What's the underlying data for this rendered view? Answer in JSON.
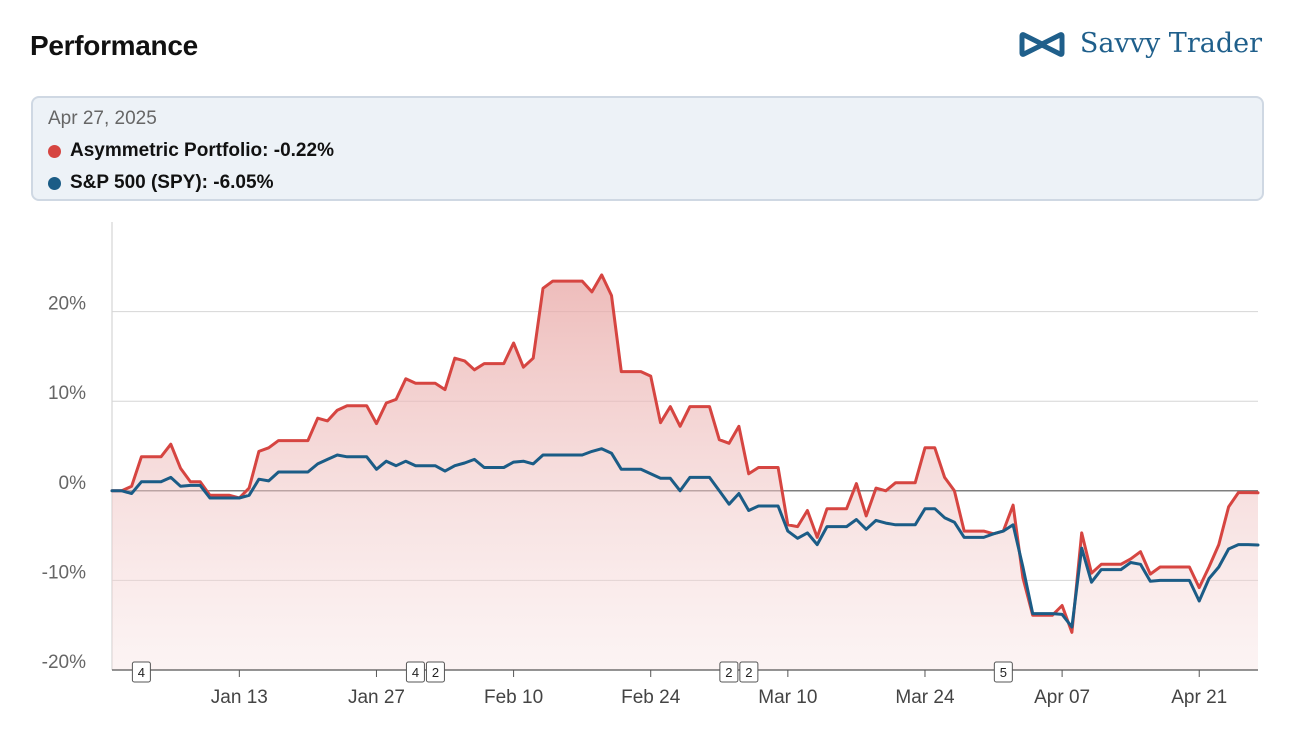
{
  "header": {
    "title": "Performance",
    "brand_name": "Savvy Trader",
    "brand_icon": "infinity-logo-icon"
  },
  "tooltip": {
    "date": "Apr 27, 2025",
    "rows": [
      {
        "label": "Asymmetric Portfolio: -0.22%",
        "color": "#d64541"
      },
      {
        "label": "S&P 500 (SPY): -6.05%",
        "color": "#1b5c86"
      }
    ]
  },
  "chart_data": {
    "type": "area",
    "title": "",
    "xlabel": "",
    "ylabel": "",
    "ylim": [
      -20,
      30
    ],
    "x_range": [
      "Dec 31",
      "Apr 27"
    ],
    "yticks": [
      {
        "value": 20,
        "label": "20%"
      },
      {
        "value": 10,
        "label": "10%"
      },
      {
        "value": 0,
        "label": "0%"
      },
      {
        "value": -10,
        "label": "-10%"
      },
      {
        "value": -20,
        "label": "-20%"
      }
    ],
    "xticks": [
      {
        "date": "Jan 13",
        "label": "Jan 13"
      },
      {
        "date": "Jan 27",
        "label": "Jan 27"
      },
      {
        "date": "Feb 10",
        "label": "Feb 10"
      },
      {
        "date": "Feb 24",
        "label": "Feb 24"
      },
      {
        "date": "Mar 10",
        "label": "Mar 10"
      },
      {
        "date": "Mar 24",
        "label": "Mar 24"
      },
      {
        "date": "Apr 07",
        "label": "Apr 07"
      },
      {
        "date": "Apr 21",
        "label": "Apr 21"
      }
    ],
    "grid": true,
    "series": [
      {
        "name": "Asymmetric Portfolio",
        "color": "#d64541",
        "points": [
          [
            "Dec 31",
            0
          ],
          [
            "Jan 01",
            0
          ],
          [
            "Jan 02",
            0.5
          ],
          [
            "Jan 03",
            3.8
          ],
          [
            "Jan 04",
            3.8
          ],
          [
            "Jan 05",
            3.8
          ],
          [
            "Jan 06",
            5.2
          ],
          [
            "Jan 07",
            2.5
          ],
          [
            "Jan 08",
            1
          ],
          [
            "Jan 09",
            1
          ],
          [
            "Jan 10",
            -0.5
          ],
          [
            "Jan 11",
            -0.5
          ],
          [
            "Jan 12",
            -0.5
          ],
          [
            "Jan 13",
            -0.8
          ],
          [
            "Jan 14",
            0.3
          ],
          [
            "Jan 15",
            4.4
          ],
          [
            "Jan 16",
            4.8
          ],
          [
            "Jan 17",
            5.6
          ],
          [
            "Jan 18",
            5.6
          ],
          [
            "Jan 19",
            5.6
          ],
          [
            "Jan 20",
            5.6
          ],
          [
            "Jan 21",
            8.1
          ],
          [
            "Jan 22",
            7.8
          ],
          [
            "Jan 23",
            9
          ],
          [
            "Jan 24",
            9.5
          ],
          [
            "Jan 25",
            9.5
          ],
          [
            "Jan 26",
            9.5
          ],
          [
            "Jan 27",
            7.5
          ],
          [
            "Jan 28",
            9.8
          ],
          [
            "Jan 29",
            10.2
          ],
          [
            "Jan 30",
            12.5
          ],
          [
            "Jan 31",
            12
          ],
          [
            "Feb 01",
            12
          ],
          [
            "Feb 02",
            12
          ],
          [
            "Feb 03",
            11.3
          ],
          [
            "Feb 04",
            14.8
          ],
          [
            "Feb 05",
            14.5
          ],
          [
            "Feb 06",
            13.5
          ],
          [
            "Feb 07",
            14.2
          ],
          [
            "Feb 08",
            14.2
          ],
          [
            "Feb 09",
            14.2
          ],
          [
            "Feb 10",
            16.5
          ],
          [
            "Feb 11",
            13.8
          ],
          [
            "Feb 12",
            14.8
          ],
          [
            "Feb 13",
            22.6
          ],
          [
            "Feb 14",
            23.4
          ],
          [
            "Feb 15",
            23.4
          ],
          [
            "Feb 16",
            23.4
          ],
          [
            "Feb 17",
            23.4
          ],
          [
            "Feb 18",
            22.2
          ],
          [
            "Feb 19",
            24.1
          ],
          [
            "Feb 20",
            21.8
          ],
          [
            "Feb 21",
            13.3
          ],
          [
            "Feb 22",
            13.3
          ],
          [
            "Feb 23",
            13.3
          ],
          [
            "Feb 24",
            12.8
          ],
          [
            "Feb 25",
            7.6
          ],
          [
            "Feb 26",
            9.4
          ],
          [
            "Feb 27",
            7.2
          ],
          [
            "Feb 28",
            9.4
          ],
          [
            "Mar 01",
            9.4
          ],
          [
            "Mar 02",
            9.4
          ],
          [
            "Mar 03",
            5.7
          ],
          [
            "Mar 04",
            5.3
          ],
          [
            "Mar 05",
            7.2
          ],
          [
            "Mar 06",
            1.9
          ],
          [
            "Mar 07",
            2.6
          ],
          [
            "Mar 08",
            2.6
          ],
          [
            "Mar 09",
            2.6
          ],
          [
            "Mar 10",
            -3.8
          ],
          [
            "Mar 11",
            -4
          ],
          [
            "Mar 12",
            -2.2
          ],
          [
            "Mar 13",
            -5.2
          ],
          [
            "Mar 14",
            -2
          ],
          [
            "Mar 15",
            -2
          ],
          [
            "Mar 16",
            -2
          ],
          [
            "Mar 17",
            0.8
          ],
          [
            "Mar 18",
            -2.8
          ],
          [
            "Mar 19",
            0.3
          ],
          [
            "Mar 20",
            0
          ],
          [
            "Mar 21",
            0.9
          ],
          [
            "Mar 22",
            0.9
          ],
          [
            "Mar 23",
            0.9
          ],
          [
            "Mar 24",
            4.8
          ],
          [
            "Mar 25",
            4.8
          ],
          [
            "Mar 26",
            1.5
          ],
          [
            "Mar 27",
            0
          ],
          [
            "Mar 28",
            -4.5
          ],
          [
            "Mar 29",
            -4.5
          ],
          [
            "Mar 30",
            -4.5
          ],
          [
            "Mar 31",
            -4.8
          ],
          [
            "Apr 01",
            -4.5
          ],
          [
            "Apr 02",
            -1.6
          ],
          [
            "Apr 03",
            -9.7
          ],
          [
            "Apr 04",
            -13.9
          ],
          [
            "Apr 05",
            -13.9
          ],
          [
            "Apr 06",
            -13.9
          ],
          [
            "Apr 07",
            -12.8
          ],
          [
            "Apr 08",
            -15.8
          ],
          [
            "Apr 09",
            -4.7
          ],
          [
            "Apr 10",
            -9.2
          ],
          [
            "Apr 11",
            -8.2
          ],
          [
            "Apr 12",
            -8.2
          ],
          [
            "Apr 13",
            -8.2
          ],
          [
            "Apr 14",
            -7.6
          ],
          [
            "Apr 15",
            -6.8
          ],
          [
            "Apr 16",
            -9.3
          ],
          [
            "Apr 17",
            -8.5
          ],
          [
            "Apr 18",
            -8.5
          ],
          [
            "Apr 19",
            -8.5
          ],
          [
            "Apr 20",
            -8.5
          ],
          [
            "Apr 21",
            -10.8
          ],
          [
            "Apr 22",
            -8.5
          ],
          [
            "Apr 23",
            -6
          ],
          [
            "Apr 24",
            -1.8
          ],
          [
            "Apr 25",
            -0.2
          ],
          [
            "Apr 26",
            -0.2
          ],
          [
            "Apr 27",
            -0.22
          ]
        ]
      },
      {
        "name": "S&P 500 (SPY)",
        "color": "#1b5c86",
        "points": [
          [
            "Dec 31",
            0
          ],
          [
            "Jan 01",
            0
          ],
          [
            "Jan 02",
            -0.3
          ],
          [
            "Jan 03",
            1
          ],
          [
            "Jan 04",
            1
          ],
          [
            "Jan 05",
            1
          ],
          [
            "Jan 06",
            1.5
          ],
          [
            "Jan 07",
            0.5
          ],
          [
            "Jan 08",
            0.6
          ],
          [
            "Jan 09",
            0.6
          ],
          [
            "Jan 10",
            -0.8
          ],
          [
            "Jan 11",
            -0.8
          ],
          [
            "Jan 12",
            -0.8
          ],
          [
            "Jan 13",
            -0.8
          ],
          [
            "Jan 14",
            -0.5
          ],
          [
            "Jan 15",
            1.3
          ],
          [
            "Jan 16",
            1.1
          ],
          [
            "Jan 17",
            2.1
          ],
          [
            "Jan 18",
            2.1
          ],
          [
            "Jan 19",
            2.1
          ],
          [
            "Jan 20",
            2.1
          ],
          [
            "Jan 21",
            3
          ],
          [
            "Jan 22",
            3.5
          ],
          [
            "Jan 23",
            4
          ],
          [
            "Jan 24",
            3.8
          ],
          [
            "Jan 25",
            3.8
          ],
          [
            "Jan 26",
            3.8
          ],
          [
            "Jan 27",
            2.4
          ],
          [
            "Jan 28",
            3.3
          ],
          [
            "Jan 29",
            2.8
          ],
          [
            "Jan 30",
            3.3
          ],
          [
            "Jan 31",
            2.8
          ],
          [
            "Feb 01",
            2.8
          ],
          [
            "Feb 02",
            2.8
          ],
          [
            "Feb 03",
            2.2
          ],
          [
            "Feb 04",
            2.8
          ],
          [
            "Feb 05",
            3.1
          ],
          [
            "Feb 06",
            3.5
          ],
          [
            "Feb 07",
            2.6
          ],
          [
            "Feb 08",
            2.6
          ],
          [
            "Feb 09",
            2.6
          ],
          [
            "Feb 10",
            3.2
          ],
          [
            "Feb 11",
            3.3
          ],
          [
            "Feb 12",
            3
          ],
          [
            "Feb 13",
            4
          ],
          [
            "Feb 14",
            4
          ],
          [
            "Feb 15",
            4
          ],
          [
            "Feb 16",
            4
          ],
          [
            "Feb 17",
            4
          ],
          [
            "Feb 18",
            4.4
          ],
          [
            "Feb 19",
            4.7
          ],
          [
            "Feb 20",
            4.2
          ],
          [
            "Feb 21",
            2.4
          ],
          [
            "Feb 22",
            2.4
          ],
          [
            "Feb 23",
            2.4
          ],
          [
            "Feb 24",
            1.9
          ],
          [
            "Feb 25",
            1.4
          ],
          [
            "Feb 26",
            1.4
          ],
          [
            "Feb 27",
            0
          ],
          [
            "Feb 28",
            1.5
          ],
          [
            "Mar 01",
            1.5
          ],
          [
            "Mar 02",
            1.5
          ],
          [
            "Mar 03",
            0
          ],
          [
            "Mar 04",
            -1.5
          ],
          [
            "Mar 05",
            -0.3
          ],
          [
            "Mar 06",
            -2.2
          ],
          [
            "Mar 07",
            -1.7
          ],
          [
            "Mar 08",
            -1.7
          ],
          [
            "Mar 09",
            -1.7
          ],
          [
            "Mar 10",
            -4.5
          ],
          [
            "Mar 11",
            -5.3
          ],
          [
            "Mar 12",
            -4.7
          ],
          [
            "Mar 13",
            -6
          ],
          [
            "Mar 14",
            -4
          ],
          [
            "Mar 15",
            -4
          ],
          [
            "Mar 16",
            -4
          ],
          [
            "Mar 17",
            -3.2
          ],
          [
            "Mar 18",
            -4.3
          ],
          [
            "Mar 19",
            -3.3
          ],
          [
            "Mar 20",
            -3.6
          ],
          [
            "Mar 21",
            -3.8
          ],
          [
            "Mar 22",
            -3.8
          ],
          [
            "Mar 23",
            -3.8
          ],
          [
            "Mar 24",
            -2
          ],
          [
            "Mar 25",
            -2
          ],
          [
            "Mar 26",
            -3
          ],
          [
            "Mar 27",
            -3.5
          ],
          [
            "Mar 28",
            -5.2
          ],
          [
            "Mar 29",
            -5.2
          ],
          [
            "Mar 30",
            -5.2
          ],
          [
            "Mar 31",
            -4.8
          ],
          [
            "Apr 01",
            -4.5
          ],
          [
            "Apr 02",
            -3.8
          ],
          [
            "Apr 03",
            -8.5
          ],
          [
            "Apr 04",
            -13.7
          ],
          [
            "Apr 05",
            -13.7
          ],
          [
            "Apr 06",
            -13.7
          ],
          [
            "Apr 07",
            -13.8
          ],
          [
            "Apr 08",
            -15.2
          ],
          [
            "Apr 09",
            -6.4
          ],
          [
            "Apr 10",
            -10.2
          ],
          [
            "Apr 11",
            -8.8
          ],
          [
            "Apr 12",
            -8.8
          ],
          [
            "Apr 13",
            -8.8
          ],
          [
            "Apr 14",
            -8
          ],
          [
            "Apr 15",
            -8.2
          ],
          [
            "Apr 16",
            -10.1
          ],
          [
            "Apr 17",
            -10
          ],
          [
            "Apr 18",
            -10
          ],
          [
            "Apr 19",
            -10
          ],
          [
            "Apr 20",
            -10
          ],
          [
            "Apr 21",
            -12.3
          ],
          [
            "Apr 22",
            -9.8
          ],
          [
            "Apr 23",
            -8.5
          ],
          [
            "Apr 24",
            -6.5
          ],
          [
            "Apr 25",
            -6.0
          ],
          [
            "Apr 26",
            -6.0
          ],
          [
            "Apr 27",
            -6.05
          ]
        ]
      }
    ],
    "annotations": [
      {
        "date": "Jan 03",
        "labels": [
          "4"
        ]
      },
      {
        "date": "Feb 01",
        "labels": [
          "4",
          "2"
        ]
      },
      {
        "date": "Mar 05",
        "labels": [
          "2",
          "2"
        ]
      },
      {
        "date": "Apr 01",
        "labels": [
          "5"
        ]
      }
    ]
  }
}
